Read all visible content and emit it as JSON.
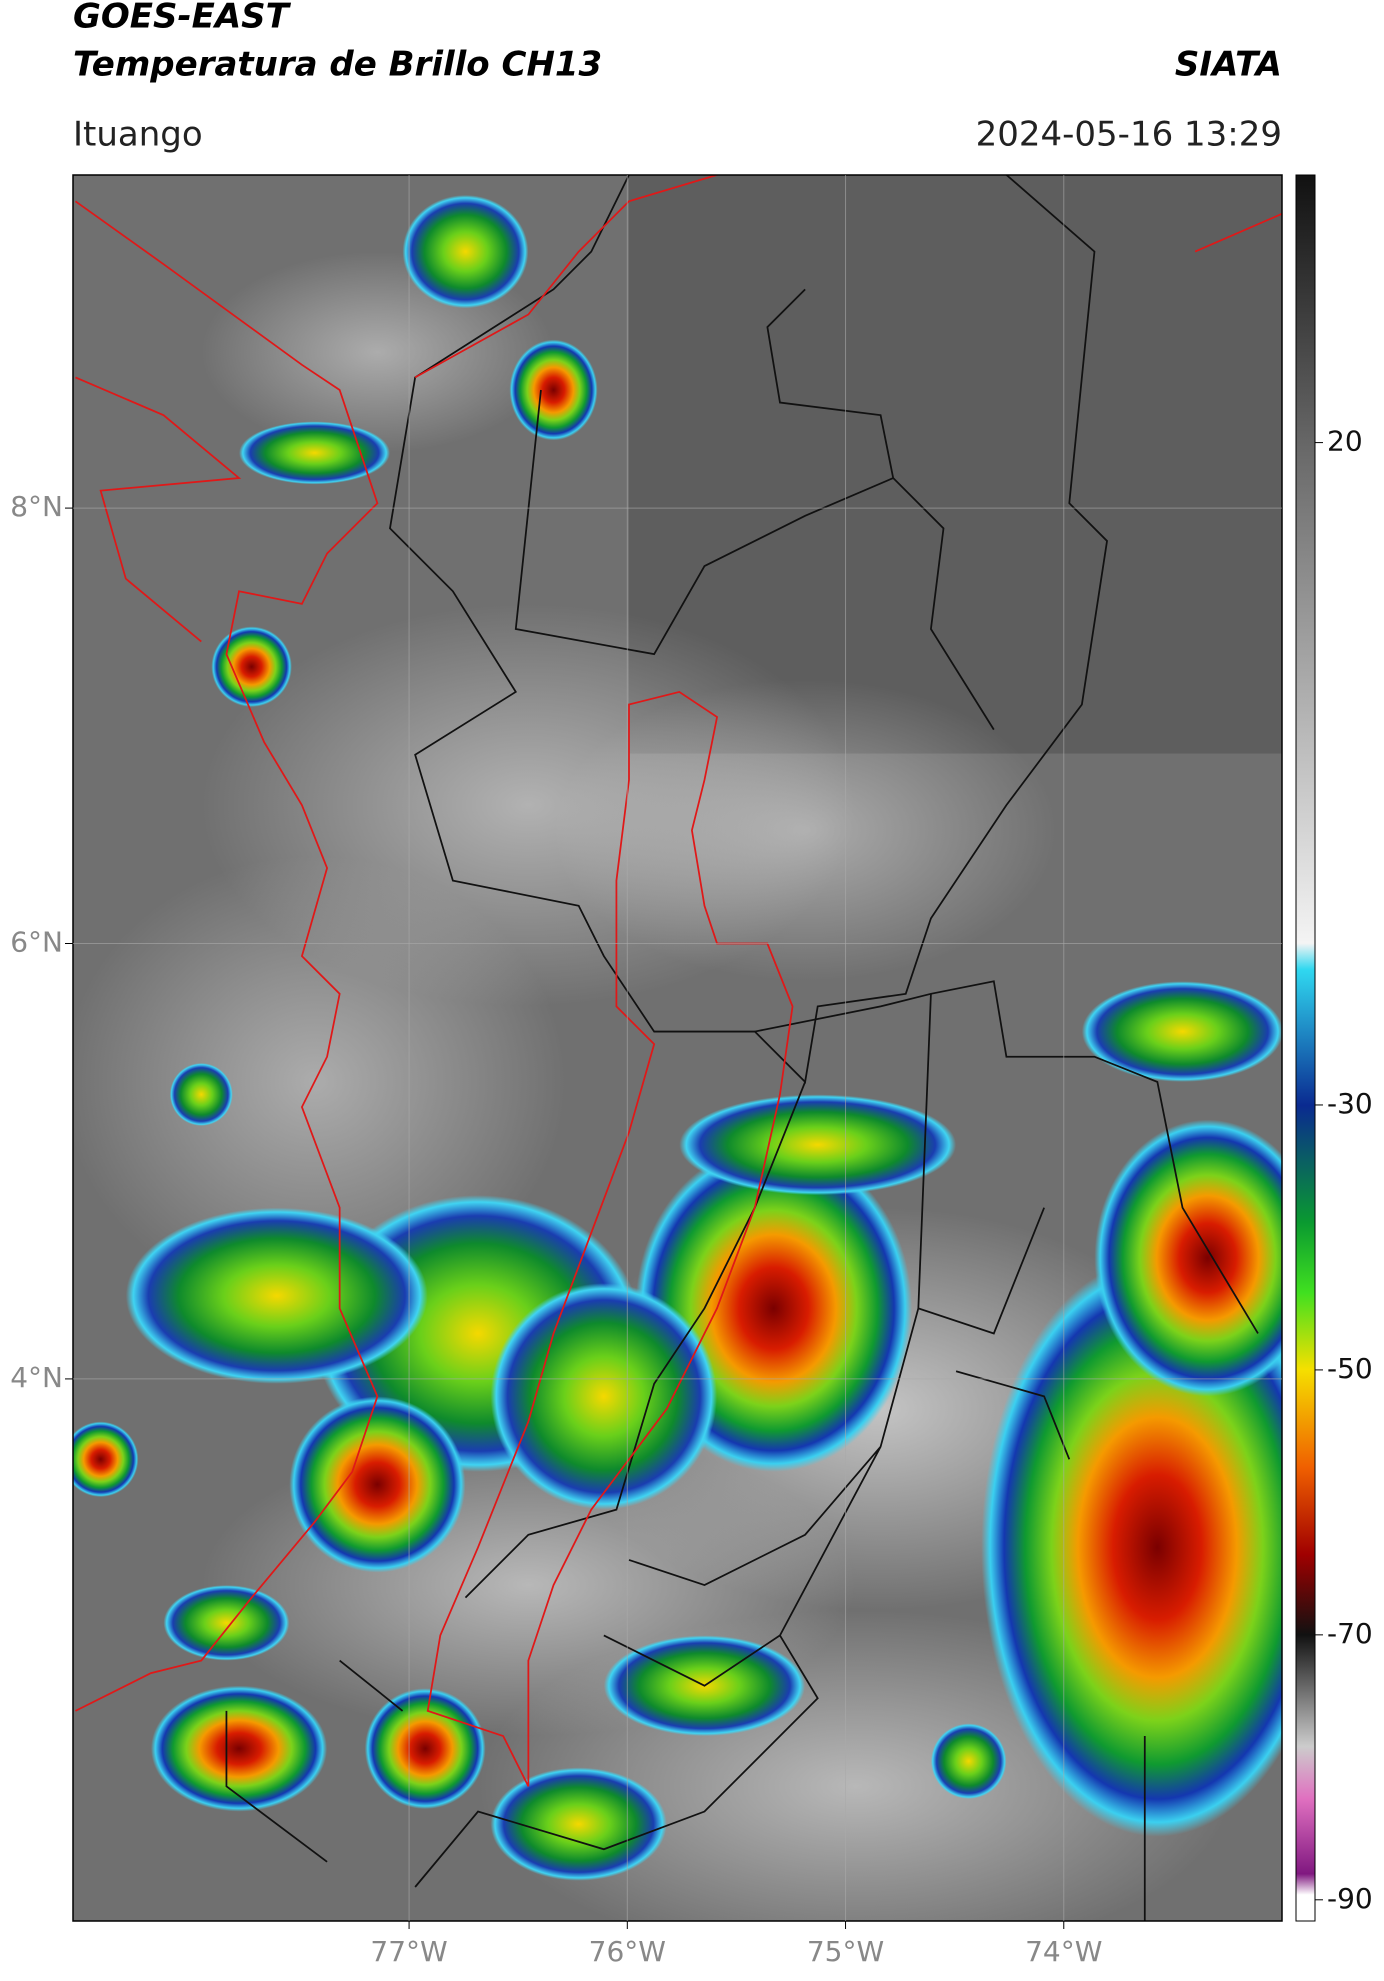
{
  "header": {
    "title": "GOES-EAST",
    "subtitle": "Temperatura de Brillo CH13",
    "source": "SIATA",
    "location": "Ituango",
    "datetime": "2024-05-16 13:29"
  },
  "map": {
    "xlim": [
      -78.54,
      -73.0
    ],
    "ylim": [
      1.51,
      9.53
    ],
    "xticks": [
      {
        "value": -77,
        "label": "77°W"
      },
      {
        "value": -76,
        "label": "76°W"
      },
      {
        "value": -75,
        "label": "75°W"
      },
      {
        "value": -74,
        "label": "74°W"
      }
    ],
    "yticks": [
      {
        "value": 4,
        "label": "4°N"
      },
      {
        "value": 6,
        "label": "6°N"
      },
      {
        "value": 8,
        "label": "8°N"
      }
    ],
    "grid": true
  },
  "colorbar": {
    "lim": [
      -91.6,
      40.2
    ],
    "ticks": [
      20,
      -30,
      -50,
      -70,
      -90
    ]
  }
}
